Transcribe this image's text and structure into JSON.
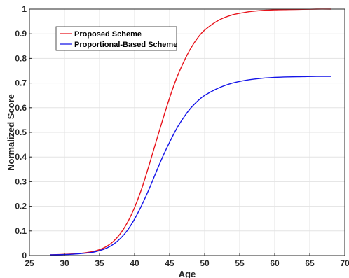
{
  "chart_data": {
    "type": "line",
    "title": "",
    "xlabel": "Age",
    "ylabel": "Normalized Score",
    "xlim": [
      25,
      70
    ],
    "ylim": [
      0,
      1
    ],
    "xticks": [
      "25",
      "30",
      "35",
      "40",
      "45",
      "50",
      "55",
      "60",
      "65",
      "70"
    ],
    "yticks": [
      "0",
      "0.1",
      "0.2",
      "0.3",
      "0.4",
      "0.5",
      "0.6",
      "0.7",
      "0.8",
      "0.9",
      "1"
    ],
    "grid": true,
    "legend_position": "top-left",
    "series": [
      {
        "name": "Proposed Scheme",
        "color": "#e8141c",
        "x": [
          28,
          30,
          32,
          34,
          35,
          36,
          37,
          38,
          39,
          40,
          41,
          42,
          43,
          44,
          45,
          46,
          47,
          48,
          49,
          50,
          52,
          54,
          56,
          58,
          60,
          62,
          64,
          66,
          68
        ],
        "y": [
          0.003,
          0.005,
          0.008,
          0.016,
          0.024,
          0.037,
          0.058,
          0.09,
          0.135,
          0.195,
          0.27,
          0.36,
          0.455,
          0.55,
          0.64,
          0.72,
          0.785,
          0.84,
          0.883,
          0.915,
          0.955,
          0.977,
          0.988,
          0.994,
          0.997,
          0.998,
          0.999,
          1.0,
          1.0
        ]
      },
      {
        "name": "Proportional-Based Scheme",
        "color": "#1414e8",
        "x": [
          28,
          30,
          32,
          34,
          35,
          36,
          37,
          38,
          39,
          40,
          41,
          42,
          43,
          44,
          45,
          46,
          47,
          48,
          49,
          50,
          52,
          54,
          56,
          58,
          60,
          62,
          64,
          66,
          68
        ],
        "y": [
          0.003,
          0.004,
          0.007,
          0.013,
          0.02,
          0.03,
          0.046,
          0.07,
          0.103,
          0.148,
          0.203,
          0.265,
          0.333,
          0.4,
          0.46,
          0.515,
          0.56,
          0.598,
          0.627,
          0.65,
          0.68,
          0.7,
          0.712,
          0.719,
          0.723,
          0.725,
          0.726,
          0.727,
          0.727
        ]
      }
    ]
  }
}
